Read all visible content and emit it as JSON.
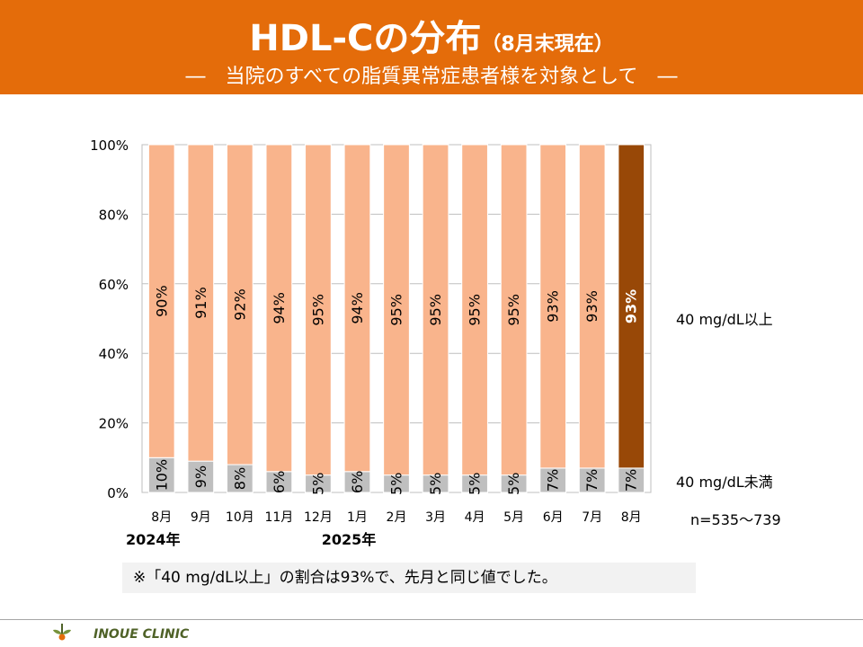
{
  "header": {
    "title": "HDL-Cの分布",
    "title_suffix": "（8月末現在）",
    "subtitle": "―　当院のすべての脂質異常症患者様を対象として　―"
  },
  "note": "※「40 mg/dL以上」の割合は93%で、先月と同じ値でした。",
  "footer": {
    "clinic_name": "INOUE CLINIC"
  },
  "colors": {
    "header_bg": "#e46c0a",
    "bar_upper": "#f9b48c",
    "bar_upper_current": "#984807",
    "bar_lower": "#bfbfbf"
  },
  "chart_data": {
    "type": "bar",
    "stacked": true,
    "percent": true,
    "categories": [
      "8月",
      "9月",
      "10月",
      "11月",
      "12月",
      "1月",
      "2月",
      "3月",
      "4月",
      "5月",
      "6月",
      "7月",
      "8月"
    ],
    "year_labels": [
      {
        "label": "2024年",
        "category_index": 0
      },
      {
        "label": "2025年",
        "category_index": 5
      }
    ],
    "series": [
      {
        "name": "40 mg/dL未満",
        "values": [
          10,
          9,
          8,
          6,
          5,
          6,
          5,
          5,
          5,
          5,
          7,
          7,
          7
        ],
        "labels": [
          "10%",
          "9%",
          "8%",
          "6%",
          "5%",
          "6%",
          "5%",
          "5%",
          "5%",
          "5%",
          "7%",
          "7%",
          "7%"
        ]
      },
      {
        "name": "40 mg/dL以上",
        "values": [
          90,
          91,
          92,
          94,
          95,
          94,
          95,
          95,
          95,
          95,
          93,
          93,
          93
        ],
        "labels": [
          "90%",
          "91%",
          "92%",
          "94%",
          "95%",
          "94%",
          "95%",
          "95%",
          "95%",
          "95%",
          "93%",
          "93%",
          "93%"
        ]
      }
    ],
    "highlight_index": 12,
    "y_ticks": [
      "0%",
      "20%",
      "40%",
      "60%",
      "80%",
      "100%"
    ],
    "ylim": [
      0,
      100
    ],
    "grid": true,
    "sample_size": "n=535～739"
  }
}
